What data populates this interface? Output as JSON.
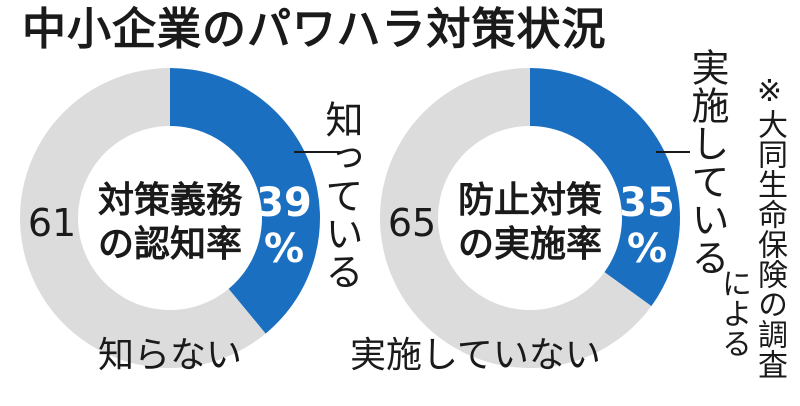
{
  "title": "中小企業のパワハラ対策状況",
  "note_line1": "※大同生命保険の調査",
  "note_line2": "による",
  "colors": {
    "primary": "#1a6fc0",
    "rest": "#dcdcdc",
    "text": "#1a1a1a"
  },
  "chart_data": [
    {
      "type": "pie",
      "center_label": [
        "対策義務",
        "の認知率"
      ],
      "slices": [
        {
          "label": "知っている",
          "value": 39,
          "value_text": "39",
          "unit": "%",
          "color": "#1a6fc0"
        },
        {
          "label": "知らない",
          "value": 61,
          "value_text": "61",
          "color": "#dcdcdc"
        }
      ]
    },
    {
      "type": "pie",
      "center_label": [
        "防止対策",
        "の実施率"
      ],
      "slices": [
        {
          "label": "実施している",
          "value": 35,
          "value_text": "35",
          "unit": "%",
          "color": "#1a6fc0"
        },
        {
          "label": "実施していない",
          "value": 65,
          "value_text": "65",
          "color": "#dcdcdc"
        }
      ]
    }
  ]
}
